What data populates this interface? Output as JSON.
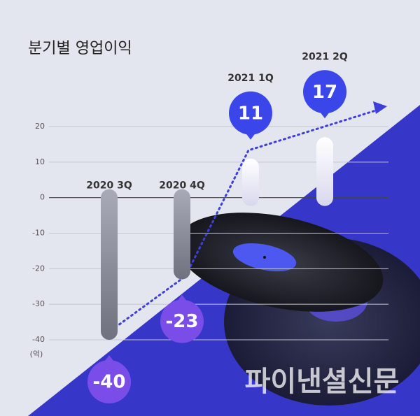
{
  "chart_data": {
    "type": "bar",
    "title": "분기별 영업이익",
    "unit": "(억)",
    "categories": [
      "2020 3Q",
      "2020 4Q",
      "2021 1Q",
      "2021 2Q"
    ],
    "values": [
      -40,
      -23,
      11,
      17
    ],
    "ylim": [
      -40,
      20
    ],
    "yticks": [
      20,
      10,
      0,
      -10,
      -20,
      -30,
      -40
    ],
    "grid": true,
    "watermark": "파이낸셜신문"
  }
}
